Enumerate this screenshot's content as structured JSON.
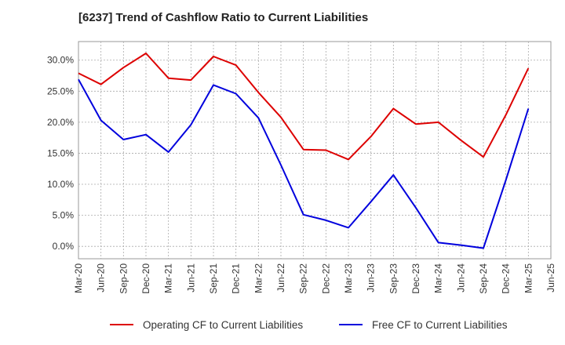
{
  "chart_data": {
    "type": "line",
    "title": "[6237]  Trend of Cashflow Ratio to Current Liabilities",
    "xlabel": "",
    "ylabel": "",
    "categories": [
      "Mar-20",
      "Jun-20",
      "Sep-20",
      "Dec-20",
      "Mar-21",
      "Jun-21",
      "Sep-21",
      "Dec-21",
      "Mar-22",
      "Jun-22",
      "Sep-22",
      "Dec-22",
      "Mar-23",
      "Jun-23",
      "Sep-23",
      "Dec-23",
      "Mar-24",
      "Jun-24",
      "Sep-24",
      "Dec-24",
      "Mar-25",
      "Jun-25"
    ],
    "y_ticks": [
      "0.0%",
      "5.0%",
      "10.0%",
      "15.0%",
      "20.0%",
      "25.0%",
      "30.0%"
    ],
    "ylim": [
      -2.0,
      33.0
    ],
    "grid": true,
    "legend_position": "bottom",
    "series": [
      {
        "name": "Operating CF to Current Liabilities",
        "color": "#dd0000",
        "values": [
          27.9,
          26.1,
          28.8,
          31.1,
          27.1,
          26.8,
          30.6,
          29.2,
          24.8,
          20.8,
          15.6,
          15.5,
          14.0,
          17.7,
          22.2,
          19.7,
          20.0,
          17.1,
          14.4,
          21.2,
          28.7,
          null
        ]
      },
      {
        "name": "Free CF to Current Liabilities",
        "color": "#0000dd",
        "values": [
          26.9,
          20.3,
          17.2,
          18.0,
          15.2,
          19.6,
          26.0,
          24.6,
          20.7,
          13.1,
          5.1,
          4.2,
          3.0,
          7.2,
          11.5,
          6.2,
          0.6,
          0.2,
          -0.3,
          10.7,
          22.2,
          null
        ]
      }
    ]
  }
}
